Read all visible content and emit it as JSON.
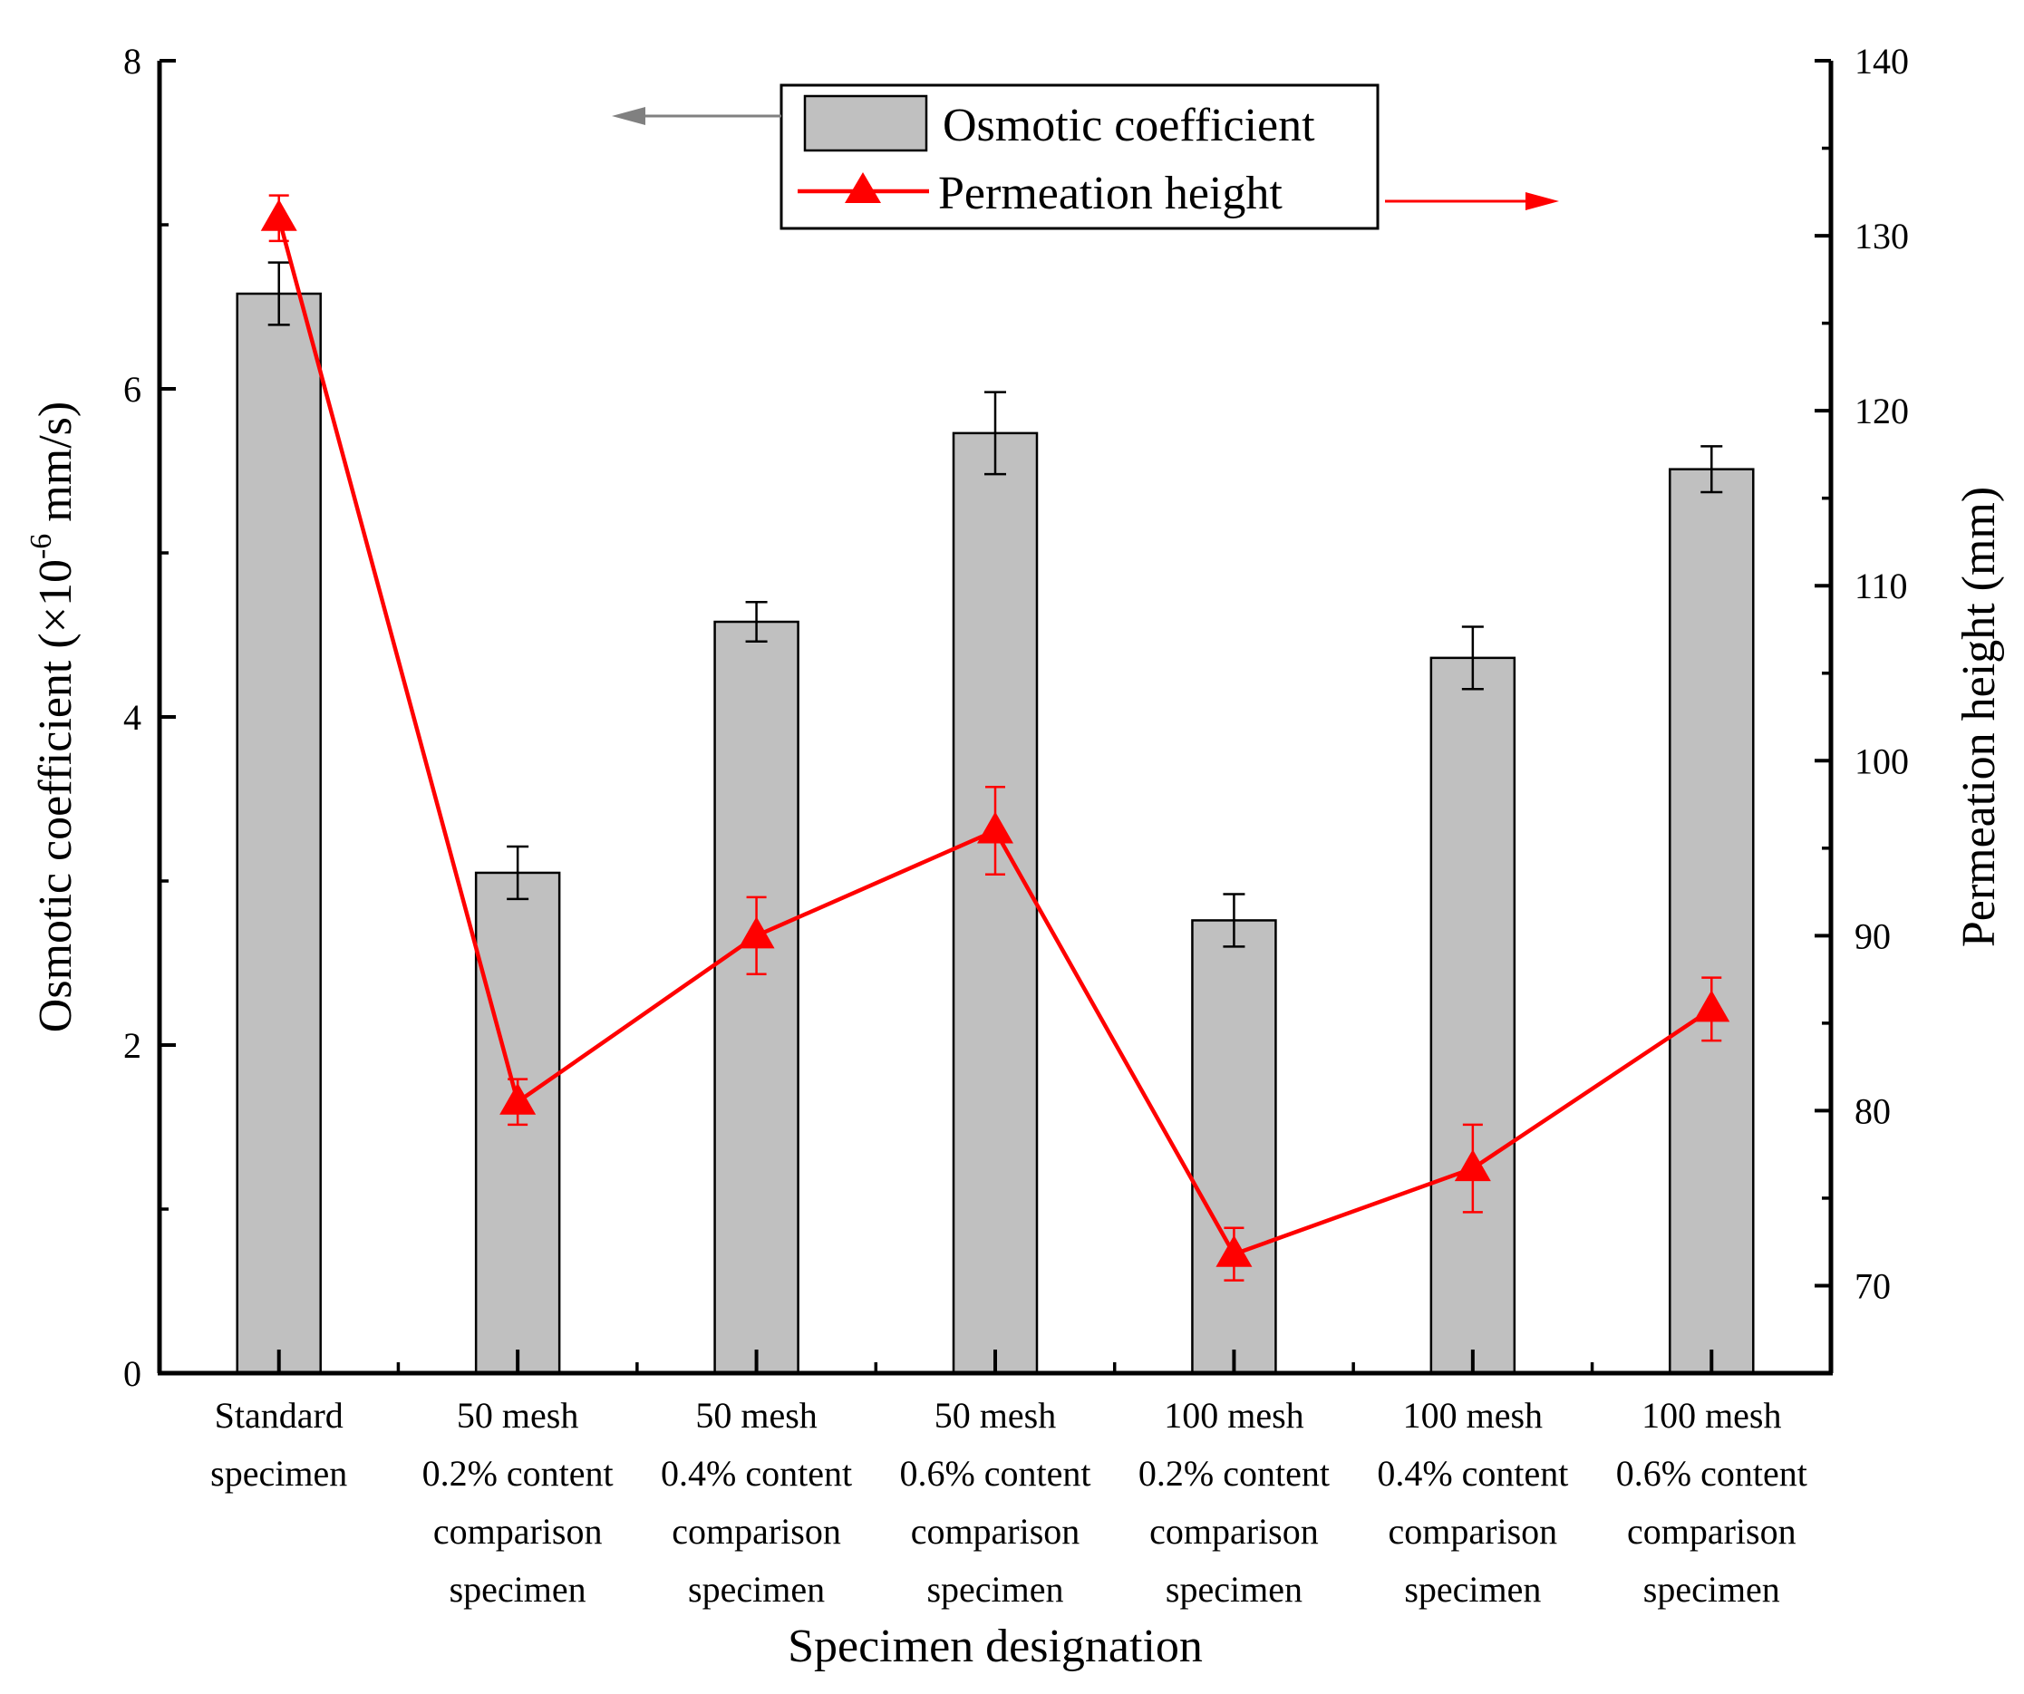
{
  "chart_data": {
    "type": "bar+line",
    "xlabel": "Specimen designation",
    "categories": [
      [
        "Standard",
        "specimen"
      ],
      [
        "50 mesh",
        "0.2% content",
        "comparison",
        "specimen"
      ],
      [
        "50 mesh",
        "0.4% content",
        "comparison",
        "specimen"
      ],
      [
        "50 mesh",
        "0.6% content",
        "comparison",
        "specimen"
      ],
      [
        "100 mesh",
        "0.2% content",
        "comparison",
        "specimen"
      ],
      [
        "100 mesh",
        "0.4% content",
        "comparison",
        "specimen"
      ],
      [
        "100 mesh",
        "0.6% content",
        "comparison",
        "specimen"
      ]
    ],
    "left_axis": {
      "label_prefix": "Osmotic coefficient (×10",
      "label_sup": "-6",
      "label_suffix": " mm/s)",
      "ylim": [
        0,
        8
      ],
      "ticks": [
        0,
        2,
        4,
        6,
        8
      ],
      "minor_ticks": [
        1,
        3,
        5,
        7
      ]
    },
    "right_axis": {
      "label": "Permeation height (mm)",
      "ylim": [
        65,
        140
      ],
      "ticks": [
        70,
        80,
        90,
        100,
        110,
        120,
        130,
        140
      ],
      "minor_ticks": [
        75,
        85,
        95,
        105,
        115,
        125,
        135
      ]
    },
    "series": [
      {
        "name": "Osmotic coefficient",
        "type": "bar",
        "axis": "left",
        "color": "#c0c0c0",
        "values": [
          6.58,
          3.05,
          4.58,
          5.73,
          2.76,
          4.36,
          5.51
        ],
        "errors": [
          0.19,
          0.16,
          0.12,
          0.25,
          0.16,
          0.19,
          0.14
        ]
      },
      {
        "name": "Permeation height",
        "type": "line",
        "axis": "right",
        "color": "#ff0000",
        "marker": "triangle",
        "values": [
          131.0,
          80.5,
          90.0,
          96.0,
          71.8,
          76.7,
          85.8
        ],
        "errors": [
          1.3,
          1.3,
          2.2,
          2.5,
          1.5,
          2.5,
          1.8
        ]
      }
    ],
    "legend": {
      "position": "top-center",
      "arrow_left_color": "#808080",
      "arrow_right_color": "#ff0000"
    }
  }
}
